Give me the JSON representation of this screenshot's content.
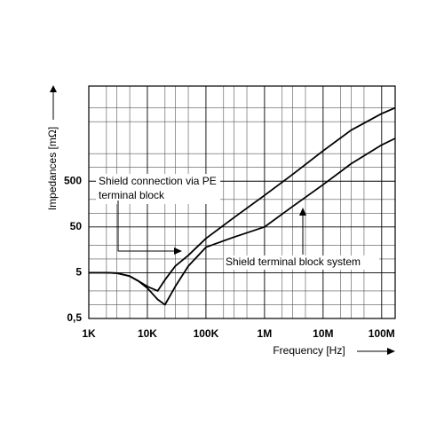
{
  "chart_data": {
    "type": "line",
    "xlabel": "Frequency [Hz]",
    "ylabel": "Impedances [mΩ]",
    "log_x": true,
    "log_y": true,
    "grid": true,
    "xlim": [
      1000,
      170000000
    ],
    "ylim": [
      0.5,
      60000
    ],
    "xticks": [
      {
        "value": 1000,
        "label": "1K"
      },
      {
        "value": 10000,
        "label": "10K"
      },
      {
        "value": 100000,
        "label": "100K"
      },
      {
        "value": 1000000,
        "label": "1M"
      },
      {
        "value": 10000000,
        "label": "10M"
      },
      {
        "value": 100000000,
        "label": "100M"
      }
    ],
    "yticks": [
      {
        "value": 0.5,
        "label": "0,5"
      },
      5,
      50,
      500
    ],
    "x": [
      1000,
      2000,
      3000,
      5000,
      7000,
      10000,
      15000,
      20000,
      30000,
      50000,
      100000,
      300000,
      1000000,
      3000000,
      10000000,
      30000000,
      100000000,
      170000000
    ],
    "series": [
      {
        "name": "Shield connection via PE terminal block",
        "color": "#000000",
        "values": [
          5,
          5,
          4.9,
          4.2,
          3.3,
          2.5,
          2.0,
          3.5,
          7,
          12,
          28,
          80,
          245,
          700,
          2300,
          6500,
          15000,
          20000
        ]
      },
      {
        "name": "Shield terminal block system",
        "color": "#000000",
        "values": [
          5,
          5,
          4.9,
          4.2,
          3.3,
          2.3,
          1.3,
          1.0,
          2.5,
          7,
          18,
          30,
          50,
          140,
          420,
          1200,
          3100,
          4300
        ]
      }
    ]
  }
}
